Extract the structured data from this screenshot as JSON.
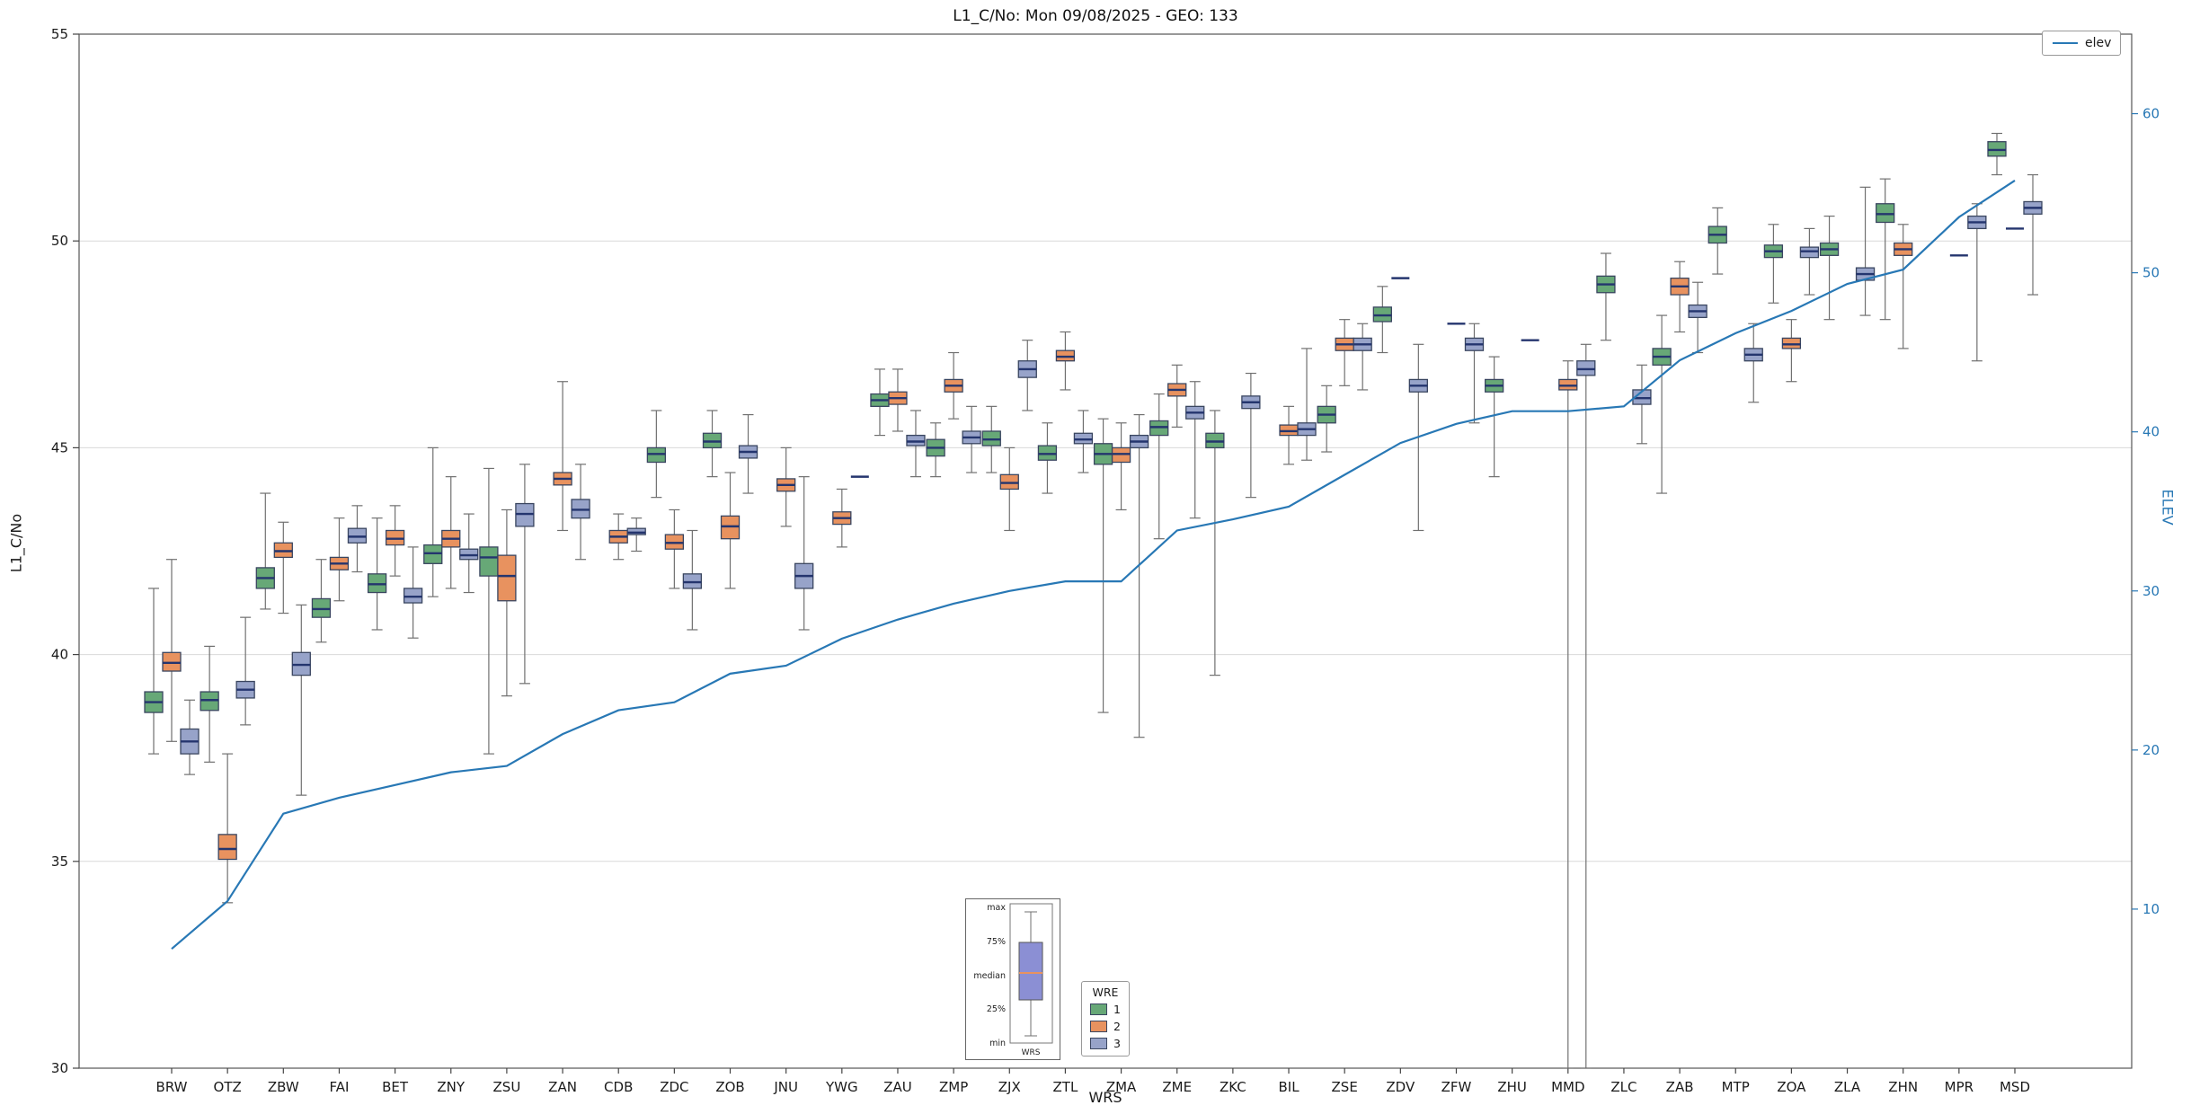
{
  "title": "L1_C/No: Mon 09/08/2025 - GEO: 133",
  "axes": {
    "left_label": "L1_C/No",
    "right_label": "ELEV",
    "x_label": "WRS",
    "left_ticks": [
      30,
      35,
      40,
      45,
      50,
      55
    ],
    "right_ticks": [
      10,
      20,
      30,
      40,
      50,
      60
    ],
    "left_range": [
      30,
      55
    ],
    "right_range": [
      0,
      65
    ]
  },
  "legend": {
    "elev_label": "elev",
    "wre_title": "WRE",
    "wre_items": [
      {
        "label": "1",
        "color": "#67a877"
      },
      {
        "label": "2",
        "color": "#e8925f"
      },
      {
        "label": "3",
        "color": "#97a3c9"
      }
    ]
  },
  "box_explainer": {
    "labels": [
      "max",
      "75%",
      "median",
      "25%",
      "min"
    ],
    "xlabel": "WRS"
  },
  "chart_data": {
    "type": "boxplot+line",
    "title": "L1_C/No: Mon 09/08/2025 - GEO: 133",
    "xlabel": "WRS",
    "ylabel_left": "L1_C/No",
    "ylabel_right": "ELEV",
    "grid": "horizontal",
    "legend_position": "top-right",
    "categories": [
      "BRW",
      "OTZ",
      "ZBW",
      "FAI",
      "BET",
      "ZNY",
      "ZSU",
      "ZAN",
      "CDB",
      "ZDC",
      "ZOB",
      "JNU",
      "YWG",
      "ZAU",
      "ZMP",
      "ZJX",
      "ZTL",
      "ZMA",
      "ZME",
      "ZKC",
      "BIL",
      "ZSE",
      "ZDV",
      "ZFW",
      "ZHU",
      "MMD",
      "ZLC",
      "ZAB",
      "MTP",
      "ZOA",
      "ZLA",
      "ZHN",
      "MPR",
      "MSD"
    ],
    "box_format": [
      "min",
      "q1",
      "median",
      "q3",
      "max"
    ],
    "styles": {
      "median": "#24356e",
      "box_edge": "#3a4660",
      "whisker": "#707070",
      "grid": "#d9d9d9",
      "frame": "#555555",
      "right_tick_color": "#2878b5"
    },
    "wre_series": [
      {
        "name": "1",
        "color": "#67a877",
        "boxes": [
          [
            37.6,
            38.6,
            38.85,
            39.1,
            41.6
          ],
          [
            37.4,
            38.65,
            38.9,
            39.1,
            40.2
          ],
          [
            41.1,
            41.6,
            41.85,
            42.1,
            43.9
          ],
          [
            40.3,
            40.9,
            41.1,
            41.35,
            42.3
          ],
          [
            40.6,
            41.5,
            41.7,
            41.95,
            43.3
          ],
          [
            41.4,
            42.2,
            42.45,
            42.65,
            45.0
          ],
          [
            37.6,
            41.9,
            42.35,
            42.6,
            44.5
          ],
          null,
          null,
          [
            43.8,
            44.65,
            44.85,
            45.0,
            45.9
          ],
          [
            44.3,
            45.0,
            45.15,
            45.35,
            45.9
          ],
          null,
          null,
          [
            45.3,
            46.0,
            46.15,
            46.3,
            46.9
          ],
          [
            44.3,
            44.8,
            45.0,
            45.2,
            45.6
          ],
          [
            44.4,
            45.05,
            45.2,
            45.4,
            46.0
          ],
          [
            43.9,
            44.7,
            44.85,
            45.05,
            45.6
          ],
          [
            38.6,
            44.6,
            44.85,
            45.1,
            45.7
          ],
          [
            42.8,
            45.3,
            45.5,
            45.65,
            46.3
          ],
          [
            39.5,
            45.0,
            45.15,
            45.35,
            45.9
          ],
          null,
          [
            44.9,
            45.6,
            45.8,
            46.0,
            46.5
          ],
          [
            47.3,
            48.05,
            48.2,
            48.4,
            48.9
          ],
          null,
          [
            44.3,
            46.35,
            46.5,
            46.65,
            47.2
          ],
          null,
          [
            47.6,
            48.75,
            48.95,
            49.15,
            49.7
          ],
          [
            43.9,
            47.0,
            47.2,
            47.4,
            48.2
          ],
          [
            49.2,
            49.95,
            50.15,
            50.35,
            50.8
          ],
          [
            48.5,
            49.6,
            49.75,
            49.9,
            50.4
          ],
          [
            48.1,
            49.65,
            49.8,
            49.95,
            50.6
          ],
          [
            48.1,
            50.45,
            50.65,
            50.9,
            51.5
          ],
          null,
          [
            51.6,
            52.05,
            52.2,
            52.4,
            52.6
          ]
        ]
      },
      {
        "name": "2",
        "color": "#e8925f",
        "boxes": [
          [
            37.9,
            39.6,
            39.8,
            40.05,
            42.3
          ],
          [
            34.0,
            35.05,
            35.3,
            35.65,
            37.6
          ],
          [
            41.0,
            42.35,
            42.5,
            42.7,
            43.2
          ],
          [
            41.3,
            42.05,
            42.2,
            42.35,
            43.3
          ],
          [
            41.9,
            42.65,
            42.8,
            43.0,
            43.6
          ],
          [
            41.6,
            42.6,
            42.8,
            43.0,
            44.3
          ],
          [
            39.0,
            41.3,
            41.9,
            42.4,
            43.5
          ],
          [
            43.0,
            44.1,
            44.25,
            44.4,
            46.6
          ],
          [
            42.3,
            42.7,
            42.85,
            43.0,
            43.4
          ],
          [
            41.6,
            42.55,
            42.7,
            42.9,
            43.5
          ],
          [
            41.6,
            42.8,
            43.1,
            43.35,
            44.4
          ],
          [
            43.1,
            43.95,
            44.1,
            44.25,
            45.0
          ],
          [
            42.6,
            43.15,
            43.3,
            43.45,
            44.0
          ],
          [
            45.4,
            46.05,
            46.2,
            46.35,
            46.9
          ],
          [
            45.7,
            46.35,
            46.5,
            46.65,
            47.3
          ],
          [
            43.0,
            44.0,
            44.15,
            44.35,
            45.0
          ],
          [
            46.4,
            47.1,
            47.2,
            47.35,
            47.8
          ],
          [
            43.5,
            44.65,
            44.85,
            45.0,
            45.6
          ],
          [
            45.5,
            46.25,
            46.4,
            46.55,
            47.0
          ],
          null,
          [
            44.6,
            45.3,
            45.4,
            45.55,
            46.0
          ],
          [
            46.5,
            47.35,
            47.5,
            47.65,
            48.1
          ],
          [
            49.1,
            49.1,
            49.1,
            49.1,
            49.1
          ],
          [
            48.0,
            48.0,
            48.0,
            48.0,
            48.0
          ],
          null,
          [
            30.0,
            46.4,
            46.5,
            46.65,
            47.1
          ],
          null,
          [
            47.8,
            48.7,
            48.9,
            49.1,
            49.5
          ],
          null,
          [
            46.6,
            47.4,
            47.5,
            47.65,
            48.1
          ],
          null,
          [
            47.4,
            49.65,
            49.8,
            49.95,
            50.4
          ],
          [
            49.65,
            49.65,
            49.65,
            49.65,
            49.65
          ],
          [
            50.3,
            50.3,
            50.3,
            50.3,
            50.3
          ]
        ]
      },
      {
        "name": "3",
        "color": "#97a3c9",
        "boxes": [
          [
            37.1,
            37.6,
            37.9,
            38.2,
            38.9
          ],
          [
            38.3,
            38.95,
            39.15,
            39.35,
            40.9
          ],
          [
            36.6,
            39.5,
            39.75,
            40.05,
            41.2
          ],
          [
            42.0,
            42.7,
            42.85,
            43.05,
            43.6
          ],
          [
            40.4,
            41.25,
            41.4,
            41.6,
            42.6
          ],
          [
            41.5,
            42.3,
            42.4,
            42.55,
            43.4
          ],
          [
            39.3,
            43.1,
            43.4,
            43.65,
            44.6
          ],
          [
            42.3,
            43.3,
            43.5,
            43.75,
            44.6
          ],
          [
            42.5,
            42.9,
            42.95,
            43.05,
            43.3
          ],
          [
            40.6,
            41.6,
            41.75,
            41.95,
            43.0
          ],
          [
            43.9,
            44.75,
            44.9,
            45.05,
            45.8
          ],
          [
            40.6,
            41.6,
            41.9,
            42.2,
            44.3
          ],
          [
            44.3,
            44.3,
            44.3,
            44.3,
            44.3
          ],
          [
            44.3,
            45.05,
            45.15,
            45.3,
            45.9
          ],
          [
            44.4,
            45.1,
            45.25,
            45.4,
            46.0
          ],
          [
            45.9,
            46.7,
            46.9,
            47.1,
            47.6
          ],
          [
            44.4,
            45.1,
            45.2,
            45.35,
            45.9
          ],
          [
            38.0,
            45.0,
            45.15,
            45.3,
            45.8
          ],
          [
            43.3,
            45.7,
            45.85,
            46.0,
            46.6
          ],
          [
            43.8,
            45.95,
            46.1,
            46.25,
            46.8
          ],
          [
            44.7,
            45.3,
            45.45,
            45.6,
            47.4
          ],
          [
            46.4,
            47.35,
            47.5,
            47.65,
            48.0
          ],
          [
            43.0,
            46.35,
            46.5,
            46.65,
            47.5
          ],
          [
            45.6,
            47.35,
            47.5,
            47.65,
            48.0
          ],
          [
            47.6,
            47.6,
            47.6,
            47.6,
            47.6
          ],
          [
            30.0,
            46.75,
            46.9,
            47.1,
            47.5
          ],
          [
            45.1,
            46.05,
            46.2,
            46.4,
            47.0
          ],
          [
            47.3,
            48.15,
            48.3,
            48.45,
            49.0
          ],
          [
            46.1,
            47.1,
            47.25,
            47.4,
            48.0
          ],
          [
            48.7,
            49.6,
            49.75,
            49.85,
            50.3
          ],
          [
            48.2,
            49.05,
            49.2,
            49.35,
            51.3
          ],
          null,
          [
            47.1,
            50.3,
            50.45,
            50.6,
            50.9
          ],
          [
            48.7,
            50.65,
            50.8,
            50.95,
            51.6
          ]
        ]
      }
    ],
    "line_series": {
      "name": "elev",
      "axis": "right",
      "color": "#2878b5",
      "values": [
        7.5,
        10.5,
        16,
        17,
        17.8,
        18.6,
        19,
        21,
        22.5,
        23,
        24.8,
        25.3,
        27,
        28.2,
        29.2,
        30,
        30.6,
        30.6,
        33.8,
        34.5,
        35.3,
        37.3,
        39.3,
        40.5,
        41.3,
        41.3,
        41.6,
        44.5,
        46.2,
        47.6,
        49.3,
        50.2,
        53.5,
        55.8
      ]
    }
  }
}
